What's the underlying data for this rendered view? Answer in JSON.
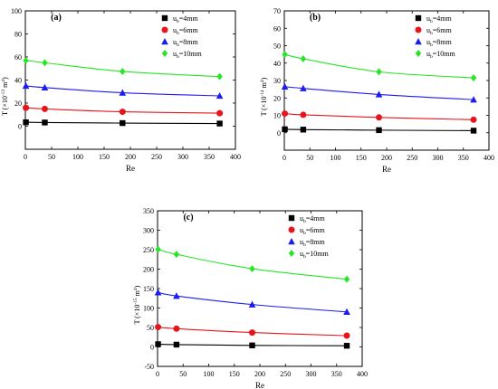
{
  "chart_data": [
    {
      "type": "line",
      "panel_label": "(a)",
      "xlabel": "Re",
      "ylabel": "T (×10",
      "ylabel_exp": "-13",
      "ylabel_unit": " m",
      "ylabel_unit_exp": "4",
      "ylabel_close": ")",
      "xlim": [
        0,
        400
      ],
      "ylim": [
        -20,
        100
      ],
      "xticks": [
        0,
        50,
        100,
        150,
        200,
        250,
        300,
        350,
        400
      ],
      "yticks": [
        0,
        20,
        40,
        60,
        80,
        100
      ],
      "legend_position": "top-right",
      "series": [
        {
          "name": "4mm",
          "color": "#000000",
          "marker": "square",
          "x": [
            1,
            37,
            185,
            370
          ],
          "y": [
            3.4,
            3.2,
            2.7,
            2.3
          ]
        },
        {
          "name": "6mm",
          "color": "#e8141b",
          "marker": "circle",
          "x": [
            1,
            37,
            185,
            370
          ],
          "y": [
            16,
            15,
            12.5,
            11.3
          ]
        },
        {
          "name": "8mm",
          "color": "#1c1cf0",
          "marker": "triangle",
          "x": [
            1,
            37,
            185,
            370
          ],
          "y": [
            35,
            33.5,
            29,
            26.3
          ]
        },
        {
          "name": "10mm",
          "color": "#26e626",
          "marker": "diamond",
          "x": [
            1,
            37,
            185,
            370
          ],
          "y": [
            57,
            55,
            47.5,
            43
          ]
        }
      ]
    },
    {
      "type": "line",
      "panel_label": "(b)",
      "xlabel": "Re",
      "ylabel": "T (×10",
      "ylabel_exp": "-14",
      "ylabel_unit": " m",
      "ylabel_unit_exp": "4",
      "ylabel_close": ")",
      "xlim": [
        0,
        400
      ],
      "ylim": [
        -10,
        70
      ],
      "xticks": [
        0,
        50,
        100,
        150,
        200,
        250,
        300,
        350,
        400
      ],
      "yticks": [
        0,
        10,
        20,
        30,
        40,
        50,
        60,
        70
      ],
      "legend_position": "top-right",
      "series": [
        {
          "name": "4mm",
          "color": "#000000",
          "marker": "square",
          "x": [
            1,
            37,
            185,
            370
          ],
          "y": [
            2,
            1.8,
            1.5,
            1.2
          ]
        },
        {
          "name": "6mm",
          "color": "#e8141b",
          "marker": "circle",
          "x": [
            1,
            37,
            185,
            370
          ],
          "y": [
            11,
            10.3,
            8.8,
            7.5
          ]
        },
        {
          "name": "8mm",
          "color": "#1c1cf0",
          "marker": "triangle",
          "x": [
            1,
            37,
            185,
            370
          ],
          "y": [
            26.5,
            25.5,
            22,
            19
          ]
        },
        {
          "name": "10mm",
          "color": "#26e626",
          "marker": "diamond",
          "x": [
            1,
            37,
            185,
            370
          ],
          "y": [
            45,
            42.5,
            35,
            31.5
          ]
        }
      ]
    },
    {
      "type": "line",
      "panel_label": "(c)",
      "xlabel": "Re",
      "ylabel": "T (×10",
      "ylabel_exp": "-15",
      "ylabel_unit": " m",
      "ylabel_unit_exp": "4",
      "ylabel_close": ")",
      "xlim": [
        0,
        400
      ],
      "ylim": [
        -50,
        350
      ],
      "xticks": [
        0,
        50,
        100,
        150,
        200,
        250,
        300,
        350,
        400
      ],
      "yticks": [
        -50,
        0,
        50,
        100,
        150,
        200,
        250,
        300,
        350
      ],
      "legend_position": "top-right",
      "series": [
        {
          "name": "4mm",
          "color": "#000000",
          "marker": "square",
          "x": [
            1,
            37,
            185,
            370
          ],
          "y": [
            7,
            6,
            4,
            3
          ]
        },
        {
          "name": "6mm",
          "color": "#e8141b",
          "marker": "circle",
          "x": [
            1,
            37,
            185,
            370
          ],
          "y": [
            51,
            47,
            37,
            29
          ]
        },
        {
          "name": "8mm",
          "color": "#1c1cf0",
          "marker": "triangle",
          "x": [
            1,
            37,
            185,
            370
          ],
          "y": [
            140,
            131,
            109,
            90
          ]
        },
        {
          "name": "10mm",
          "color": "#26e626",
          "marker": "diamond",
          "x": [
            1,
            37,
            185,
            370
          ],
          "y": [
            251,
            238,
            201,
            174
          ]
        }
      ]
    }
  ],
  "legend_symbol": "u",
  "legend_sub": "b",
  "legend_eq": "="
}
